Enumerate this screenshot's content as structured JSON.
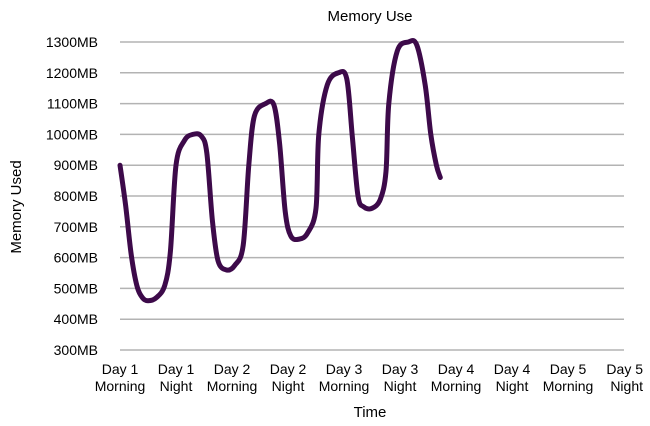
{
  "chart_data": {
    "type": "line",
    "title": "Memory Use",
    "xlabel": "Time",
    "ylabel": "Memory Used",
    "x_ticks": [
      [
        "Day 1",
        "Morning"
      ],
      [
        "Day 1",
        "Night"
      ],
      [
        "Day 2",
        "Morning"
      ],
      [
        "Day 2",
        "Night"
      ],
      [
        "Day 3",
        "Morning"
      ],
      [
        "Day 3",
        "Night"
      ],
      [
        "Day 4",
        "Morning"
      ],
      [
        "Day 4",
        "Night"
      ],
      [
        "Day 5",
        "Morning"
      ],
      [
        "Day 5",
        "Night"
      ]
    ],
    "y_ticks": [
      "300MB",
      "400MB",
      "500MB",
      "600MB",
      "700MB",
      "800MB",
      "900MB",
      "1000MB",
      "1100MB",
      "1200MB",
      "1300MB"
    ],
    "ylim": [
      300,
      1300
    ],
    "grid": true,
    "series": [
      {
        "color": "#3d0a4a",
        "points": [
          [
            0.0,
            900
          ],
          [
            0.1,
            770
          ],
          [
            0.2,
            610
          ],
          [
            0.3,
            510
          ],
          [
            0.4,
            470
          ],
          [
            0.5,
            460
          ],
          [
            0.65,
            470
          ],
          [
            0.8,
            510
          ],
          [
            0.9,
            620
          ],
          [
            1.0,
            900
          ],
          [
            1.15,
            980
          ],
          [
            1.3,
            1000
          ],
          [
            1.45,
            995
          ],
          [
            1.55,
            940
          ],
          [
            1.65,
            720
          ],
          [
            1.75,
            590
          ],
          [
            1.9,
            560
          ],
          [
            2.05,
            575
          ],
          [
            2.2,
            640
          ],
          [
            2.3,
            900
          ],
          [
            2.4,
            1060
          ],
          [
            2.6,
            1100
          ],
          [
            2.75,
            1095
          ],
          [
            2.85,
            970
          ],
          [
            2.95,
            750
          ],
          [
            3.05,
            670
          ],
          [
            3.2,
            660
          ],
          [
            3.35,
            680
          ],
          [
            3.5,
            760
          ],
          [
            3.55,
            1000
          ],
          [
            3.7,
            1160
          ],
          [
            3.9,
            1200
          ],
          [
            4.05,
            1180
          ],
          [
            4.15,
            990
          ],
          [
            4.25,
            800
          ],
          [
            4.35,
            765
          ],
          [
            4.5,
            760
          ],
          [
            4.65,
            790
          ],
          [
            4.75,
            880
          ],
          [
            4.8,
            1100
          ],
          [
            4.95,
            1270
          ],
          [
            5.15,
            1300
          ],
          [
            5.3,
            1290
          ],
          [
            5.45,
            1160
          ],
          [
            5.55,
            1000
          ],
          [
            5.65,
            900
          ],
          [
            5.72,
            860
          ]
        ]
      }
    ]
  }
}
